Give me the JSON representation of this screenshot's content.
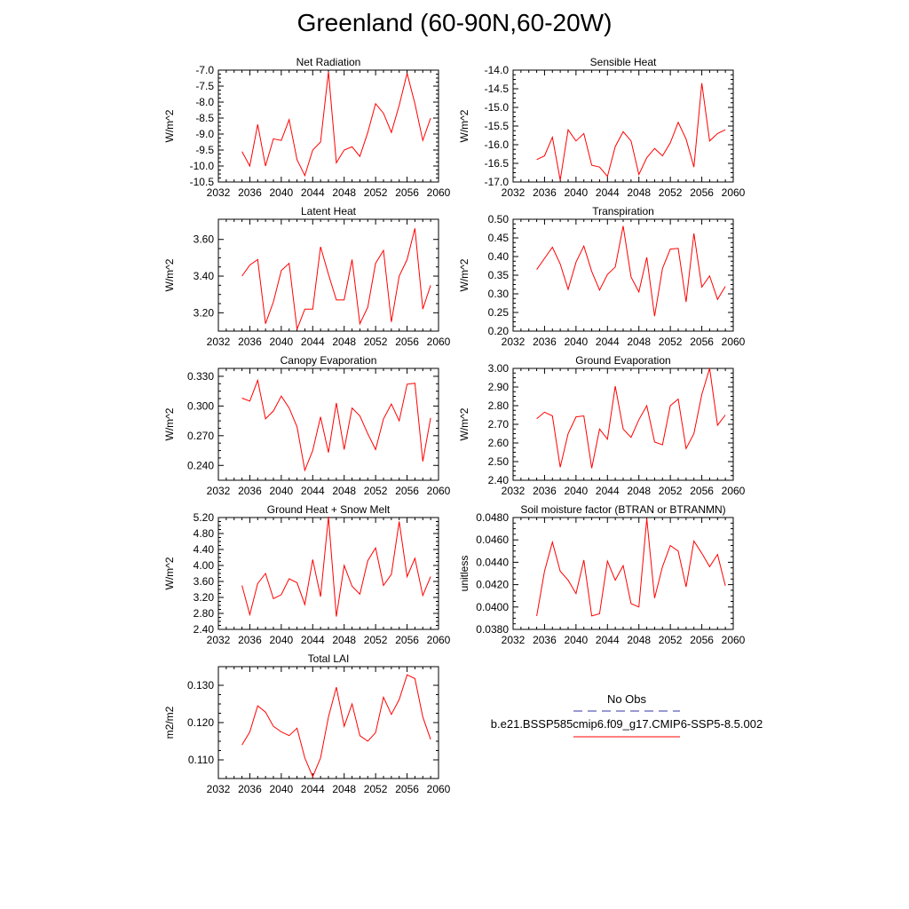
{
  "title": "Greenland (60-90N,60-20W)",
  "line_color": "#ff0000",
  "obs_color": "#3333aa",
  "legend": {
    "obs_label": "No Obs",
    "model_label": "b.e21.BSSP585cmip6.f09_g17.CMIP6-SSP5-8.5.002"
  },
  "chart_data": [
    {
      "type": "line",
      "title": "Net Radiation",
      "ylabel": "W/m^2",
      "xlim": [
        2032,
        2060
      ],
      "ylim": [
        -10.5,
        -7.0
      ],
      "xticks": [
        "2032",
        "2036",
        "2040",
        "2044",
        "2048",
        "2052",
        "2056",
        "2060"
      ],
      "yticks": [
        "-7.0",
        "-7.5",
        "-8.0",
        "-8.5",
        "-9.0",
        "-9.5",
        "-10.0",
        "-10.5"
      ],
      "x": [
        2035,
        2036,
        2037,
        2038,
        2039,
        2040,
        2041,
        2042,
        2043,
        2044,
        2045,
        2046,
        2047,
        2048,
        2049,
        2050,
        2051,
        2052,
        2053,
        2054,
        2055,
        2056,
        2057,
        2058,
        2059
      ],
      "series": [
        {
          "values": [
            -9.55,
            -10.0,
            -8.7,
            -10.0,
            -9.15,
            -9.2,
            -8.55,
            -9.8,
            -10.3,
            -9.5,
            -9.25,
            -7.05,
            -9.9,
            -9.5,
            -9.4,
            -9.7,
            -8.95,
            -8.05,
            -8.35,
            -8.95,
            -8.1,
            -7.1,
            -8.05,
            -9.2,
            -8.5
          ]
        }
      ]
    },
    {
      "type": "line",
      "title": "Sensible Heat",
      "ylabel": "W/m^2",
      "xlim": [
        2032,
        2060
      ],
      "ylim": [
        -17.0,
        -14.0
      ],
      "xticks": [
        "2032",
        "2036",
        "2040",
        "2044",
        "2048",
        "2052",
        "2056",
        "2060"
      ],
      "yticks": [
        "-14.0",
        "-14.5",
        "-15.0",
        "-15.5",
        "-16.0",
        "-16.5",
        "-17.0"
      ],
      "x": [
        2035,
        2036,
        2037,
        2038,
        2039,
        2040,
        2041,
        2042,
        2043,
        2044,
        2045,
        2046,
        2047,
        2048,
        2049,
        2050,
        2051,
        2052,
        2053,
        2054,
        2055,
        2056,
        2057,
        2058,
        2059
      ],
      "series": [
        {
          "values": [
            -16.4,
            -16.3,
            -15.8,
            -16.95,
            -15.6,
            -15.9,
            -15.7,
            -16.55,
            -16.6,
            -16.85,
            -16.05,
            -15.65,
            -15.9,
            -16.8,
            -16.35,
            -16.1,
            -16.3,
            -15.95,
            -15.4,
            -15.85,
            -16.6,
            -14.35,
            -15.9,
            -15.7,
            -15.6
          ]
        }
      ]
    },
    {
      "type": "line",
      "title": "Latent Heat",
      "ylabel": "W/m^2",
      "xlim": [
        2032,
        2060
      ],
      "ylim": [
        3.1,
        3.71
      ],
      "xticks": [
        "2032",
        "2036",
        "2040",
        "2044",
        "2048",
        "2052",
        "2056",
        "2060"
      ],
      "yticks": [
        "3.60",
        "3.40",
        "3.20"
      ],
      "x": [
        2035,
        2036,
        2037,
        2038,
        2039,
        2040,
        2041,
        2042,
        2043,
        2044,
        2045,
        2046,
        2047,
        2048,
        2049,
        2050,
        2051,
        2052,
        2053,
        2054,
        2055,
        2056,
        2057,
        2058,
        2059
      ],
      "series": [
        {
          "values": [
            3.4,
            3.46,
            3.49,
            3.14,
            3.26,
            3.43,
            3.47,
            3.11,
            3.22,
            3.22,
            3.56,
            3.41,
            3.27,
            3.27,
            3.49,
            3.14,
            3.23,
            3.47,
            3.54,
            3.15,
            3.4,
            3.49,
            3.66,
            3.22,
            3.35
          ]
        }
      ]
    },
    {
      "type": "line",
      "title": "Transpiration",
      "ylabel": "W/m^2",
      "xlim": [
        2032,
        2060
      ],
      "ylim": [
        0.2,
        0.5
      ],
      "xticks": [
        "2032",
        "2036",
        "2040",
        "2044",
        "2048",
        "2052",
        "2056",
        "2060"
      ],
      "yticks": [
        "0.50",
        "0.45",
        "0.40",
        "0.35",
        "0.30",
        "0.25",
        "0.20"
      ],
      "x": [
        2035,
        2036,
        2037,
        2038,
        2039,
        2040,
        2041,
        2042,
        2043,
        2044,
        2045,
        2046,
        2047,
        2048,
        2049,
        2050,
        2051,
        2052,
        2053,
        2054,
        2055,
        2056,
        2057,
        2058,
        2059
      ],
      "series": [
        {
          "values": [
            0.365,
            0.395,
            0.425,
            0.38,
            0.312,
            0.385,
            0.428,
            0.36,
            0.31,
            0.352,
            0.372,
            0.482,
            0.345,
            0.305,
            0.398,
            0.24,
            0.368,
            0.42,
            0.422,
            0.278,
            0.462,
            0.318,
            0.348,
            0.285,
            0.32
          ]
        }
      ]
    },
    {
      "type": "line",
      "title": "Canopy Evaporation",
      "ylabel": "W/m^2",
      "xlim": [
        2032,
        2060
      ],
      "ylim": [
        0.225,
        0.338
      ],
      "xticks": [
        "2032",
        "2036",
        "2040",
        "2044",
        "2048",
        "2052",
        "2056",
        "2060"
      ],
      "yticks": [
        "0.330",
        "0.300",
        "0.270",
        "0.240"
      ],
      "x": [
        2035,
        2036,
        2037,
        2038,
        2039,
        2040,
        2041,
        2042,
        2043,
        2044,
        2045,
        2046,
        2047,
        2048,
        2049,
        2050,
        2051,
        2052,
        2053,
        2054,
        2055,
        2056,
        2057,
        2058,
        2059
      ],
      "series": [
        {
          "values": [
            0.308,
            0.305,
            0.326,
            0.287,
            0.295,
            0.31,
            0.298,
            0.279,
            0.235,
            0.255,
            0.289,
            0.253,
            0.303,
            0.256,
            0.298,
            0.29,
            0.272,
            0.256,
            0.287,
            0.302,
            0.285,
            0.322,
            0.323,
            0.244,
            0.288
          ]
        }
      ]
    },
    {
      "type": "line",
      "title": "Ground Evaporation",
      "ylabel": "W/m^2",
      "xlim": [
        2032,
        2060
      ],
      "ylim": [
        2.4,
        3.0
      ],
      "xticks": [
        "2032",
        "2036",
        "2040",
        "2044",
        "2048",
        "2052",
        "2056",
        "2060"
      ],
      "yticks": [
        "3.00",
        "2.90",
        "2.80",
        "2.70",
        "2.60",
        "2.50",
        "2.40"
      ],
      "x": [
        2035,
        2036,
        2037,
        2038,
        2039,
        2040,
        2041,
        2042,
        2043,
        2044,
        2045,
        2046,
        2047,
        2048,
        2049,
        2050,
        2051,
        2052,
        2053,
        2054,
        2055,
        2056,
        2057,
        2058,
        2059
      ],
      "series": [
        {
          "values": [
            2.73,
            2.765,
            2.745,
            2.47,
            2.65,
            2.74,
            2.745,
            2.465,
            2.675,
            2.62,
            2.905,
            2.675,
            2.63,
            2.725,
            2.8,
            2.605,
            2.59,
            2.8,
            2.835,
            2.57,
            2.65,
            2.86,
            3.0,
            2.695,
            2.75
          ]
        }
      ]
    },
    {
      "type": "line",
      "title": "Ground Heat + Snow Melt",
      "ylabel": "W/m^2",
      "xlim": [
        2032,
        2060
      ],
      "ylim": [
        2.4,
        5.2
      ],
      "xticks": [
        "2032",
        "2036",
        "2040",
        "2044",
        "2048",
        "2052",
        "2056",
        "2060"
      ],
      "yticks": [
        "5.20",
        "4.80",
        "4.40",
        "4.00",
        "3.60",
        "3.20",
        "2.80",
        "2.40"
      ],
      "x": [
        2035,
        2036,
        2037,
        2038,
        2039,
        2040,
        2041,
        2042,
        2043,
        2044,
        2045,
        2046,
        2047,
        2048,
        2049,
        2050,
        2051,
        2052,
        2053,
        2054,
        2055,
        2056,
        2057,
        2058,
        2059
      ],
      "series": [
        {
          "values": [
            3.5,
            2.77,
            3.55,
            3.8,
            3.17,
            3.27,
            3.67,
            3.57,
            3.02,
            4.15,
            3.22,
            5.22,
            2.72,
            4.0,
            3.48,
            3.28,
            4.12,
            4.44,
            3.5,
            3.78,
            5.1,
            3.72,
            4.18,
            3.25,
            3.72
          ]
        }
      ]
    },
    {
      "type": "line",
      "title": "Soil moisture factor (BTRAN or BTRANMN)",
      "ylabel": "unitless",
      "xlim": [
        2032,
        2060
      ],
      "ylim": [
        0.038,
        0.048
      ],
      "xticks": [
        "2032",
        "2036",
        "2040",
        "2044",
        "2048",
        "2052",
        "2056",
        "2060"
      ],
      "yticks": [
        "0.0480",
        "0.0460",
        "0.0440",
        "0.0420",
        "0.0400",
        "0.0380"
      ],
      "x": [
        2035,
        2036,
        2037,
        2038,
        2039,
        2040,
        2041,
        2042,
        2043,
        2044,
        2045,
        2046,
        2047,
        2048,
        2049,
        2050,
        2051,
        2052,
        2053,
        2054,
        2055,
        2056,
        2057,
        2058,
        2059
      ],
      "series": [
        {
          "values": [
            0.0392,
            0.0432,
            0.0458,
            0.0432,
            0.0424,
            0.0412,
            0.0442,
            0.0392,
            0.0394,
            0.0441,
            0.0424,
            0.0437,
            0.0403,
            0.04,
            0.0479,
            0.0408,
            0.0436,
            0.0455,
            0.045,
            0.0418,
            0.0459,
            0.0448,
            0.0436,
            0.0447,
            0.0419
          ]
        }
      ]
    },
    {
      "type": "line",
      "title": "Total LAI",
      "ylabel": "m2/m2",
      "xlim": [
        2032,
        2060
      ],
      "ylim": [
        0.105,
        0.135
      ],
      "xticks": [
        "2032",
        "2036",
        "2040",
        "2044",
        "2048",
        "2052",
        "2056",
        "2060"
      ],
      "yticks": [
        "0.130",
        "0.120",
        "0.110"
      ],
      "x": [
        2035,
        2036,
        2037,
        2038,
        2039,
        2040,
        2041,
        2042,
        2043,
        2044,
        2045,
        2046,
        2047,
        2048,
        2049,
        2050,
        2051,
        2052,
        2053,
        2054,
        2055,
        2056,
        2057,
        2058,
        2059
      ],
      "series": [
        {
          "values": [
            0.114,
            0.1175,
            0.1245,
            0.1228,
            0.119,
            0.1175,
            0.1165,
            0.1185,
            0.1105,
            0.1055,
            0.1105,
            0.1215,
            0.1295,
            0.119,
            0.125,
            0.1165,
            0.115,
            0.1173,
            0.1268,
            0.1222,
            0.1262,
            0.1328,
            0.1318,
            0.1215,
            0.1155
          ]
        }
      ]
    }
  ]
}
